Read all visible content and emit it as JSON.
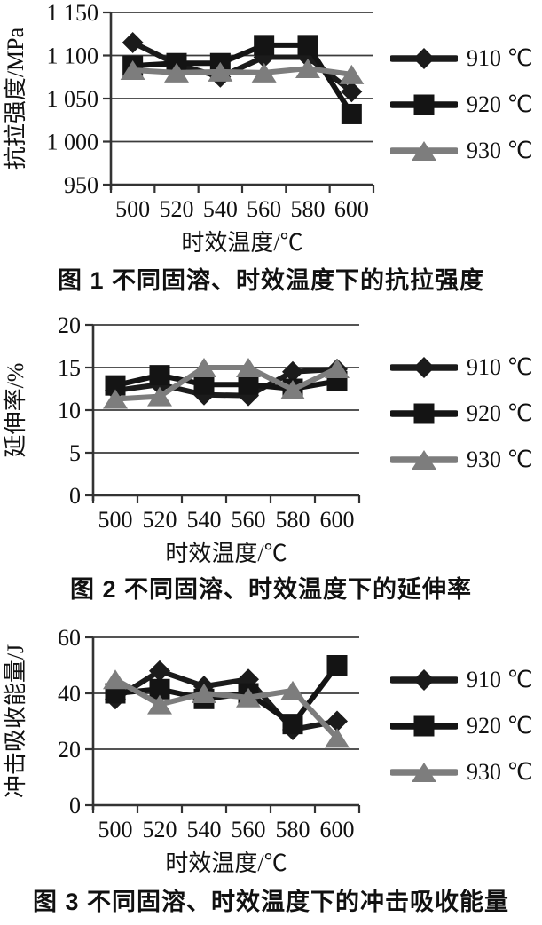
{
  "page": {
    "background": "#ffffff"
  },
  "colors": {
    "axis": "#333333",
    "grid": "#3c3c3c"
  },
  "chart_data": [
    {
      "type": "line",
      "caption": "图 1  不同固溶、时效温度下的抗拉强度",
      "xlabel": "时效温度/℃",
      "ylabel": "抗拉强度/MPa",
      "categories": [
        500,
        520,
        540,
        560,
        580,
        600
      ],
      "ylim": [
        950,
        1150
      ],
      "yticks": [
        950,
        1000,
        1050,
        1100,
        1150
      ],
      "ytick_labels": [
        "950",
        "1 000",
        "1 050",
        "1 100",
        "1 150"
      ],
      "grid": true,
      "legend_position": "right",
      "series": [
        {
          "name": "910 ℃",
          "marker": "diamond",
          "color": "#1b1b1b",
          "values": [
            1115,
            1090,
            1075,
            1098,
            1098,
            1058
          ]
        },
        {
          "name": "920 ℃",
          "marker": "square",
          "color": "#141414",
          "values": [
            1088,
            1091,
            1091,
            1112,
            1112,
            1032
          ]
        },
        {
          "name": "930 ℃",
          "marker": "triangle",
          "color": "#7d7d7d",
          "values": [
            1083,
            1080,
            1081,
            1080,
            1085,
            1078
          ]
        }
      ]
    },
    {
      "type": "line",
      "caption": "图 2  不同固溶、时效温度下的延伸率",
      "xlabel": "时效温度/℃",
      "ylabel": "延伸率/%",
      "categories": [
        500,
        520,
        540,
        560,
        580,
        600
      ],
      "ylim": [
        0,
        20
      ],
      "yticks": [
        0,
        5,
        10,
        15,
        20
      ],
      "ytick_labels": [
        "0",
        "5",
        "10",
        "15",
        "20"
      ],
      "grid": true,
      "legend_position": "right",
      "series": [
        {
          "name": "910 ℃",
          "marker": "diamond",
          "color": "#1b1b1b",
          "values": [
            12.3,
            13.0,
            11.8,
            11.7,
            14.5,
            14.8
          ]
        },
        {
          "name": "920 ℃",
          "marker": "square",
          "color": "#141414",
          "values": [
            12.9,
            14.1,
            13.0,
            13.0,
            12.5,
            13.4
          ]
        },
        {
          "name": "930 ℃",
          "marker": "triangle",
          "color": "#7d7d7d",
          "values": [
            11.3,
            11.6,
            15.0,
            15.0,
            12.4,
            14.9
          ]
        }
      ]
    },
    {
      "type": "line",
      "caption": "图 3  不同固溶、时效温度下的冲击吸收能量",
      "xlabel": "时效温度/℃",
      "ylabel": "冲击吸收能量/J",
      "categories": [
        500,
        520,
        540,
        560,
        580,
        600
      ],
      "ylim": [
        0,
        60
      ],
      "yticks": [
        0,
        20,
        40,
        60
      ],
      "ytick_labels": [
        "0",
        "20",
        "40",
        "60"
      ],
      "grid": true,
      "legend_position": "right",
      "series": [
        {
          "name": "910 ℃",
          "marker": "diamond",
          "color": "#1b1b1b",
          "values": [
            38,
            48,
            42.5,
            45,
            27,
            30
          ]
        },
        {
          "name": "920 ℃",
          "marker": "square",
          "color": "#141414",
          "values": [
            40,
            41.5,
            38,
            40,
            29,
            50
          ]
        },
        {
          "name": "930 ℃",
          "marker": "triangle",
          "color": "#7d7d7d",
          "values": [
            45,
            36,
            40,
            38.5,
            41,
            24
          ]
        }
      ]
    }
  ]
}
